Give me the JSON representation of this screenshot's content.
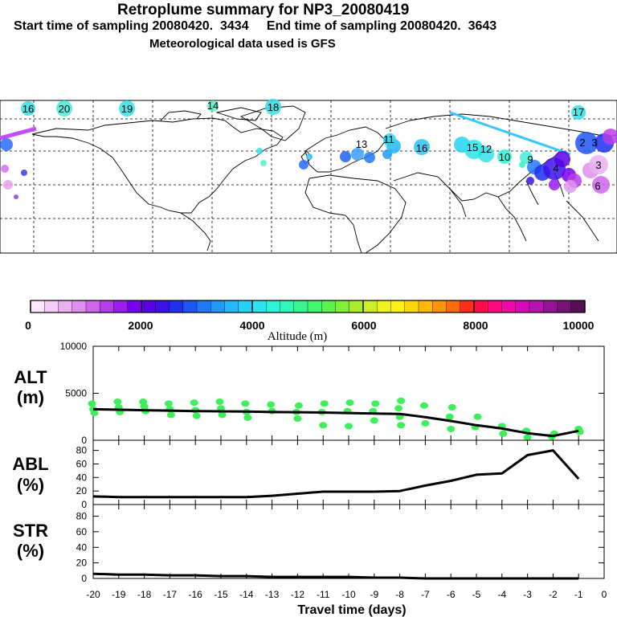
{
  "header": {
    "title": "Retroplume summary for NP3_20080419",
    "subtitle": "Start time of sampling 20080420.  3434     End time of sampling 20080420.  3643",
    "met_line": "Meteorological data used is GFS"
  },
  "map": {
    "labels": [
      {
        "text": "16",
        "color": "#33e0e6"
      },
      {
        "text": "20",
        "color": "#44ecd8"
      },
      {
        "text": "19",
        "color": "#33e0e6"
      },
      {
        "text": "14",
        "color": "#55f2c8"
      },
      {
        "text": "18",
        "color": "#33e0e6"
      },
      {
        "text": "17",
        "color": "#33e0e6"
      },
      {
        "text": "13",
        "color": "#3a9dff"
      },
      {
        "text": "11",
        "color": "#2ad4ef"
      },
      {
        "text": "16",
        "color": "#29c4f2"
      },
      {
        "text": "15",
        "color": "#33e0e6"
      },
      {
        "text": "12",
        "color": "#33e0e6"
      },
      {
        "text": "10",
        "color": "#44ecd8"
      },
      {
        "text": "9",
        "color": "#1b55f0"
      },
      {
        "text": "4",
        "color": "#3010c8"
      },
      {
        "text": "3",
        "color": "#e096f0"
      },
      {
        "text": "6",
        "color": "#b050e8"
      },
      {
        "text": "2",
        "color": "#1840e0"
      },
      {
        "text": "3",
        "color": "#1840e0"
      }
    ]
  },
  "colorbar": {
    "title": "Altitude (m)",
    "ticks": [
      "0",
      "2000",
      "4000",
      "6000",
      "8000",
      "10000"
    ],
    "colors": [
      "#ffe8ff",
      "#f5ccf7",
      "#eab0f0",
      "#de8fec",
      "#cf66ea",
      "#b63ee8",
      "#9a1cee",
      "#7a00f0",
      "#5a00e6",
      "#3c10e8",
      "#2030f0",
      "#1f55f4",
      "#1e78f7",
      "#2099f9",
      "#22b8fa",
      "#25d2f6",
      "#29e6ec",
      "#2cf4d8",
      "#30f8b8",
      "#36f890",
      "#40f86a",
      "#5cf44c",
      "#80f034",
      "#a8ee2a",
      "#ccf024",
      "#ecf41c",
      "#fff014",
      "#ffd80c",
      "#ffb808",
      "#ff9408",
      "#ff6a0c",
      "#ff2c18",
      "#ff0a4a",
      "#ff0a82",
      "#f00aa8",
      "#d80ab8",
      "#b812b0",
      "#961296",
      "#741277",
      "#551055"
    ]
  },
  "chart_data": [
    {
      "type": "line",
      "panel": "ALT",
      "ylabel_line1": "ALT",
      "ylabel_line2": "(m)",
      "x": [
        -20,
        -19,
        -18,
        -17,
        -16,
        -15,
        -14,
        -13,
        -12,
        -11,
        -10,
        -9,
        -8,
        -7,
        -6,
        -5,
        -4,
        -3,
        -2,
        -1
      ],
      "series": [
        {
          "name": "median altitude",
          "values": [
            3300,
            3250,
            3200,
            3150,
            3100,
            3080,
            3050,
            3000,
            2980,
            2950,
            2900,
            2850,
            2800,
            2450,
            2050,
            1600,
            1250,
            750,
            450,
            1000
          ]
        }
      ],
      "scatter": {
        "name": "particle altitudes",
        "color": "#3cf05a",
        "x": [
          -20,
          -20,
          -20,
          -19,
          -19,
          -19,
          -18,
          -18,
          -18,
          -17,
          -17,
          -17,
          -16,
          -16,
          -16,
          -15,
          -15,
          -15,
          -14,
          -14,
          -14,
          -13,
          -13,
          -12,
          -12,
          -12,
          -11,
          -11,
          -11,
          -10,
          -10,
          -10,
          -9,
          -9,
          -9,
          -8,
          -8,
          -8,
          -8,
          -7,
          -7,
          -6,
          -6,
          -6,
          -5,
          -5,
          -4,
          -4,
          -3,
          -3,
          -2,
          -2,
          -1,
          -1
        ],
        "y": [
          3900,
          3300,
          2900,
          4100,
          3500,
          3000,
          4100,
          3600,
          3100,
          3900,
          3300,
          2700,
          4000,
          3200,
          2600,
          4100,
          3400,
          2700,
          3900,
          3000,
          2400,
          3800,
          3100,
          3700,
          3000,
          2300,
          3900,
          3000,
          1600,
          4000,
          3100,
          1500,
          3900,
          3100,
          2100,
          4200,
          3400,
          2500,
          1600,
          3700,
          1800,
          3500,
          2500,
          1200,
          2500,
          1400,
          1500,
          700,
          1000,
          300,
          700,
          400,
          1200,
          900
        ]
      },
      "yticks": [
        "0",
        "5000",
        "10000"
      ],
      "ylim": [
        0,
        10000
      ],
      "xlim": [
        -20,
        0
      ]
    },
    {
      "type": "line",
      "panel": "ABL",
      "ylabel_line1": "ABL",
      "ylabel_line2": "(%)",
      "x": [
        -20,
        -19,
        -18,
        -17,
        -16,
        -15,
        -14,
        -13,
        -12,
        -11,
        -10,
        -9,
        -8,
        -7,
        -6,
        -5,
        -4,
        -3,
        -2,
        -1
      ],
      "series": [
        {
          "name": "fraction in ABL",
          "values": [
            12,
            11,
            11,
            11,
            11,
            11,
            11,
            13,
            16,
            19,
            19,
            19,
            20,
            28,
            35,
            44,
            46,
            73,
            80,
            38
          ]
        }
      ],
      "yticks": [
        "0",
        "20",
        "40",
        "60",
        "80"
      ],
      "ylim": [
        0,
        95
      ],
      "xlim": [
        -20,
        0
      ]
    },
    {
      "type": "line",
      "panel": "STR",
      "ylabel_line1": "STR",
      "ylabel_line2": "(%)",
      "x": [
        -20,
        -19,
        -18,
        -17,
        -16,
        -15,
        -14,
        -13,
        -12,
        -11,
        -10,
        -9,
        -8,
        -7,
        -6,
        -5,
        -4,
        -3,
        -2,
        -1
      ],
      "series": [
        {
          "name": "fraction in stratosphere",
          "values": [
            6,
            5,
            5,
            4,
            4,
            3,
            3,
            2,
            2,
            2,
            2,
            1,
            1,
            0,
            0,
            0,
            0,
            0,
            0,
            0
          ]
        }
      ],
      "yticks": [
        "0",
        "20",
        "40",
        "60",
        "80"
      ],
      "ylim": [
        0,
        95
      ],
      "xlim": [
        -20,
        0
      ],
      "xlabel": "Travel time (days)",
      "xticks": [
        "-20",
        "-19",
        "-18",
        "-17",
        "-16",
        "-15",
        "-14",
        "-13",
        "-12",
        "-11",
        "-10",
        "-9",
        "-8",
        "-7",
        "-6",
        "-5",
        "-4",
        "-3",
        "-2",
        "-1",
        "0"
      ]
    }
  ]
}
